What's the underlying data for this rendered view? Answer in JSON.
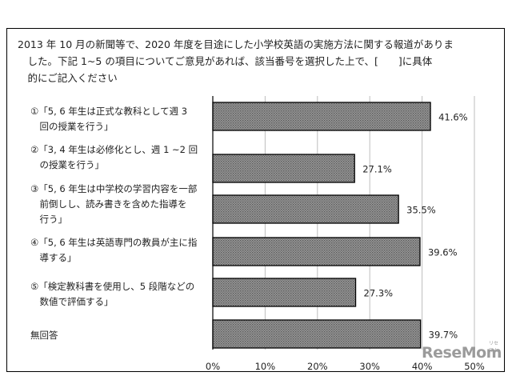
{
  "question": "2013 年 10 月の新聞等で、2020 年度を目途にした小学校英語の実施方法に関する報道がありま\n　した。下記 1~5 の項目についてご意見があれば、該当番号を選択した上で、[　　]に具体\n　的にご記入ください",
  "chart_data": {
    "type": "bar",
    "orientation": "horizontal",
    "categories": [
      "①「5, 6 年生は正式な教科として週 3\n　回の授業を行う」",
      "②「3, 4 年生は必修化とし、週 1 ~2 回\n　の授業を行う」",
      "③「5, 6 年生は中学校の学習内容を一部\n　前倒しし、読み書きを含めた指導を\n　行う」",
      "④「5, 6 年生は英語専門の教員が主に指\n　導する」",
      "⑤「検定教科書を使用し、5 段階などの\n　数値で評価する」",
      "無回答"
    ],
    "values": [
      41.6,
      27.1,
      35.5,
      39.6,
      27.3,
      39.7
    ],
    "value_labels": [
      "41.6%",
      "27.1%",
      "35.5%",
      "39.6%",
      "27.3%",
      "39.7%"
    ],
    "ticks": [
      "0%",
      "10%",
      "20%",
      "30%",
      "40%",
      "50%"
    ],
    "xlim": [
      0,
      50
    ],
    "grid": true,
    "bar_fill": "#8c8c8c"
  },
  "watermark": {
    "text": "ReseMom",
    "sub": "リセマム"
  }
}
